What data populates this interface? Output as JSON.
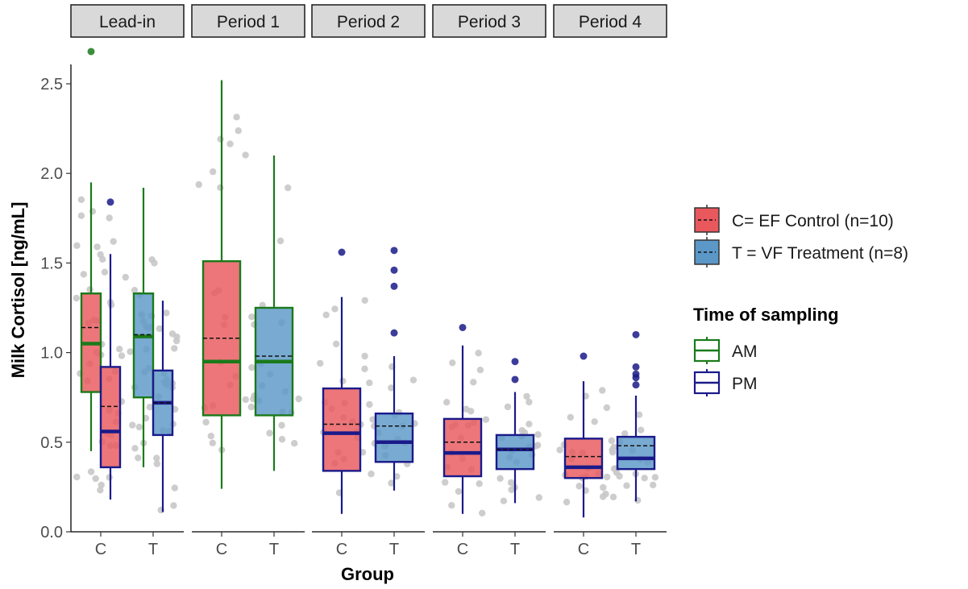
{
  "chart_data": {
    "type": "boxplot",
    "facet_var": "Period",
    "facets": [
      "Lead-in",
      "Period 1",
      "Period 2",
      "Period 3",
      "Period 4"
    ],
    "categories": [
      "C",
      "T"
    ],
    "xlabel": "Group",
    "ylabel": "Milk Cortisol [ng/mL]",
    "ylim": [
      0,
      2.7
    ],
    "yticks": [
      0.0,
      0.5,
      1.0,
      1.5,
      2.0,
      2.5
    ],
    "ytick_labels": [
      "0.0",
      "0.5",
      "1.0",
      "1.5",
      "2.0",
      "2.5"
    ],
    "colors": {
      "C_fill": "#e8585c",
      "T_fill": "#5b97c7",
      "AM_outline": "#1a7a1a",
      "PM_outline": "#1a1a8a",
      "points": "#c8c8c8"
    },
    "legend_fill": {
      "entries": [
        {
          "label": "C= EF Control (n=10)",
          "color": "#e8585c"
        },
        {
          "label": "T = VF Treatment (n=8)",
          "color": "#5b97c7"
        }
      ]
    },
    "legend_outline": {
      "title": "Time of sampling",
      "entries": [
        {
          "label": "AM",
          "color": "#1a7a1a"
        },
        {
          "label": "PM",
          "color": "#1a1a8a"
        }
      ]
    },
    "boxes": [
      {
        "facet": "Lead-in",
        "group": "C",
        "time": "AM",
        "min": 0.45,
        "q1": 0.78,
        "median": 1.05,
        "mean": 1.14,
        "q3": 1.33,
        "max": 1.95,
        "outliers": [
          2.68
        ]
      },
      {
        "facet": "Lead-in",
        "group": "C",
        "time": "PM",
        "min": 0.18,
        "q1": 0.36,
        "median": 0.56,
        "mean": 0.7,
        "q3": 0.92,
        "max": 1.55,
        "outliers": [
          1.84
        ]
      },
      {
        "facet": "Lead-in",
        "group": "T",
        "time": "AM",
        "min": 0.36,
        "q1": 0.75,
        "median": 1.09,
        "mean": 1.1,
        "q3": 1.33,
        "max": 1.92,
        "outliers": []
      },
      {
        "facet": "Lead-in",
        "group": "T",
        "time": "PM",
        "min": 0.11,
        "q1": 0.54,
        "median": 0.72,
        "mean": 0.72,
        "q3": 0.9,
        "max": 1.29,
        "outliers": []
      },
      {
        "facet": "Period 1",
        "group": "C",
        "time": "AM",
        "min": 0.24,
        "q1": 0.65,
        "median": 0.95,
        "mean": 1.08,
        "q3": 1.51,
        "max": 2.52,
        "outliers": []
      },
      {
        "facet": "Period 1",
        "group": "T",
        "time": "AM",
        "min": 0.34,
        "q1": 0.65,
        "median": 0.95,
        "mean": 0.98,
        "q3": 1.25,
        "max": 2.1,
        "outliers": []
      },
      {
        "facet": "Period 2",
        "group": "C",
        "time": "PM",
        "min": 0.1,
        "q1": 0.34,
        "median": 0.55,
        "mean": 0.6,
        "q3": 0.8,
        "max": 1.31,
        "outliers": [
          1.56
        ]
      },
      {
        "facet": "Period 2",
        "group": "T",
        "time": "PM",
        "min": 0.23,
        "q1": 0.39,
        "median": 0.5,
        "mean": 0.59,
        "q3": 0.66,
        "max": 0.98,
        "outliers": [
          1.11,
          1.37,
          1.46,
          1.57
        ]
      },
      {
        "facet": "Period 3",
        "group": "C",
        "time": "PM",
        "min": 0.1,
        "q1": 0.31,
        "median": 0.44,
        "mean": 0.5,
        "q3": 0.63,
        "max": 1.04,
        "outliers": [
          1.14
        ]
      },
      {
        "facet": "Period 3",
        "group": "T",
        "time": "PM",
        "min": 0.16,
        "q1": 0.35,
        "median": 0.46,
        "mean": 0.46,
        "q3": 0.54,
        "max": 0.78,
        "outliers": [
          0.85,
          0.95
        ]
      },
      {
        "facet": "Period 4",
        "group": "C",
        "time": "PM",
        "min": 0.08,
        "q1": 0.3,
        "median": 0.36,
        "mean": 0.42,
        "q3": 0.52,
        "max": 0.84,
        "outliers": [
          0.98
        ]
      },
      {
        "facet": "Period 4",
        "group": "T",
        "time": "PM",
        "min": 0.17,
        "q1": 0.35,
        "median": 0.41,
        "mean": 0.48,
        "q3": 0.53,
        "max": 0.76,
        "outliers": [
          0.82,
          0.86,
          0.88,
          0.92,
          1.1
        ]
      }
    ]
  }
}
